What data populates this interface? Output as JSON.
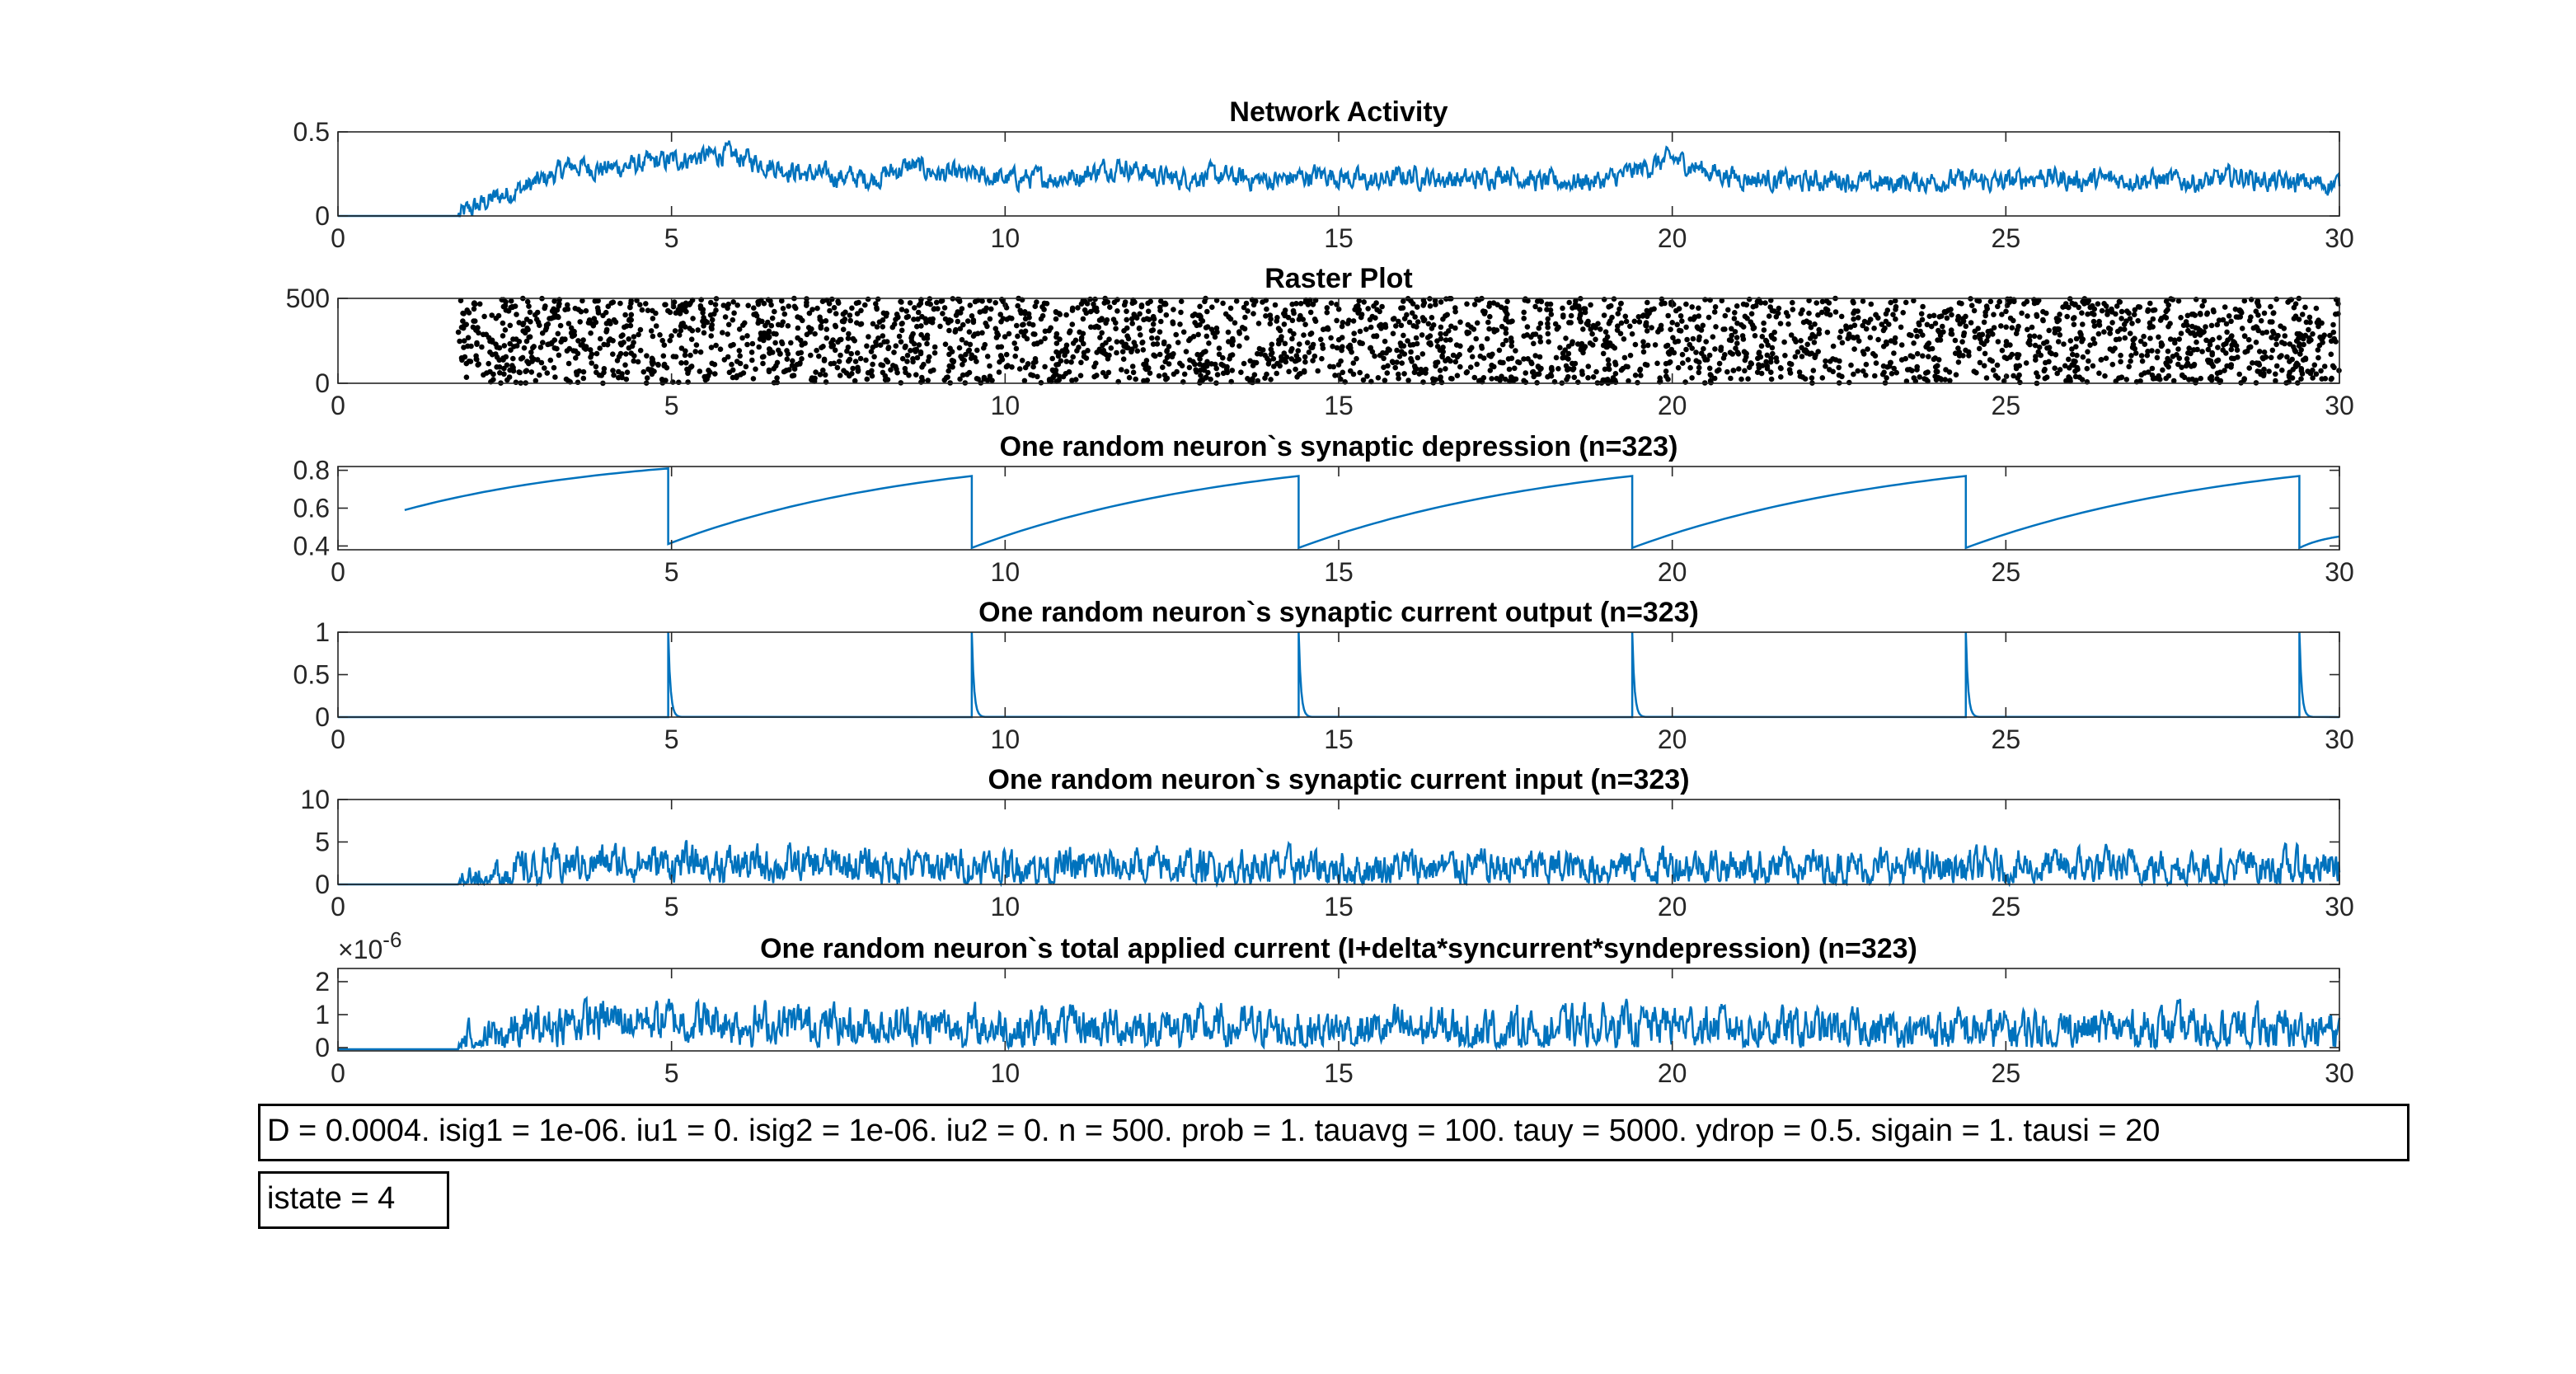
{
  "colors": {
    "line": "#0072BD",
    "raster": "#000000",
    "axis": "#262626"
  },
  "chart_data": [
    {
      "type": "line",
      "title": "Network Activity",
      "x": [
        0,
        1,
        1.8,
        2.3,
        3,
        3.5,
        4,
        5,
        5.8,
        6.5,
        7,
        8,
        8.6,
        9,
        10,
        11,
        11.7,
        12.5,
        13,
        14,
        14.8,
        15.5,
        16,
        17,
        17.5,
        18,
        19,
        20,
        20.5,
        21,
        22,
        22.5,
        23,
        24,
        25,
        25.5,
        26,
        27,
        28,
        28.5,
        29,
        30
      ],
      "values": [
        0,
        0,
        0,
        0.1,
        0.2,
        0.3,
        0.28,
        0.33,
        0.37,
        0.3,
        0.25,
        0.22,
        0.3,
        0.25,
        0.22,
        0.23,
        0.3,
        0.22,
        0.24,
        0.21,
        0.25,
        0.2,
        0.24,
        0.21,
        0.26,
        0.2,
        0.21,
        0.34,
        0.27,
        0.23,
        0.2,
        0.22,
        0.19,
        0.21,
        0.2,
        0.24,
        0.21,
        0.22,
        0.2,
        0.24,
        0.2,
        0.19
      ],
      "noise": 0.05,
      "xlim": [
        0,
        30
      ],
      "ylim": [
        0,
        0.5
      ],
      "xticks": [
        "0",
        "5",
        "10",
        "15",
        "20",
        "25",
        "30"
      ],
      "yticks": [
        {
          "v": 0,
          "label": "0"
        },
        {
          "v": 0.5,
          "label": "0.5"
        }
      ]
    },
    {
      "type": "scatter",
      "title": "Raster Plot",
      "x_start": 1.8,
      "x_end": 30,
      "y_max": 500,
      "points_per_unit": 110,
      "xlim": [
        0,
        30
      ],
      "ylim": [
        0,
        500
      ],
      "xticks": [
        "0",
        "5",
        "10",
        "15",
        "20",
        "25",
        "30"
      ],
      "yticks": [
        {
          "v": 0,
          "label": "0"
        },
        {
          "v": 500,
          "label": "500"
        }
      ]
    },
    {
      "type": "line",
      "title": "One random neuron`s synaptic depression (n=323)",
      "x": [
        1,
        4.95,
        4.95,
        9.5,
        9.5,
        14.4,
        14.4,
        19.4,
        19.4,
        24.4,
        24.4,
        29.4,
        29.4,
        30
      ],
      "values": [
        0.59,
        0.81,
        0.41,
        0.77,
        0.39,
        0.77,
        0.39,
        0.77,
        0.39,
        0.77,
        0.39,
        0.77,
        0.39,
        0.45
      ],
      "curve": "saturating",
      "xlim": [
        0,
        30
      ],
      "ylim": [
        0.38,
        0.82
      ],
      "xticks": [
        "0",
        "5",
        "10",
        "15",
        "20",
        "25",
        "30"
      ],
      "yticks": [
        {
          "v": 0.4,
          "label": "0.4"
        },
        {
          "v": 0.6,
          "label": "0.6"
        },
        {
          "v": 0.8,
          "label": "0.8"
        }
      ]
    },
    {
      "type": "line",
      "title": "One random neuron`s synaptic current output (n=323)",
      "spike_x": [
        4.95,
        9.5,
        14.4,
        19.4,
        24.4,
        29.4
      ],
      "spike_height": 1,
      "xlim": [
        0,
        30
      ],
      "ylim": [
        0,
        1
      ],
      "xticks": [
        "0",
        "5",
        "10",
        "15",
        "20",
        "25",
        "30"
      ],
      "yticks": [
        {
          "v": 0,
          "label": "0"
        },
        {
          "v": 0.5,
          "label": "0.5"
        },
        {
          "v": 1,
          "label": "1"
        }
      ]
    },
    {
      "type": "line",
      "title": "One random neuron`s synaptic current input (n=323)",
      "x": [
        0,
        1,
        1.8,
        2.5,
        3.5,
        4.5,
        5.5,
        6.5,
        8,
        9.5,
        11,
        12,
        14,
        16,
        18,
        20,
        22,
        24,
        26,
        28,
        30
      ],
      "values": [
        0,
        0,
        0,
        1.4,
        2.4,
        2.6,
        2.4,
        2.2,
        2.2,
        2.0,
        2.0,
        2.1,
        1.9,
        2.0,
        1.9,
        2.4,
        2.0,
        1.9,
        2.0,
        2.0,
        1.9
      ],
      "noise": 1.7,
      "ymin_clip": 0,
      "xlim": [
        0,
        30
      ],
      "ylim": [
        0,
        10
      ],
      "xticks": [
        "0",
        "5",
        "10",
        "15",
        "20",
        "25",
        "30"
      ],
      "yticks": [
        {
          "v": 0,
          "label": "0"
        },
        {
          "v": 5,
          "label": "5"
        },
        {
          "v": 10,
          "label": "10"
        }
      ]
    },
    {
      "type": "line",
      "title": "One random neuron`s total applied current (I+delta*syncurrent*syndepression) (n=323)",
      "exponent_label": "×10",
      "exponent": "-6",
      "x": [
        0,
        1,
        1.8,
        2.5,
        3.5,
        4.5,
        5.5,
        6.5,
        8,
        9.5,
        11,
        12,
        14,
        16,
        18,
        20,
        22,
        24,
        26,
        28,
        30
      ],
      "values": [
        -0.05,
        -0.05,
        -0.05,
        0.4,
        0.8,
        0.85,
        0.8,
        0.7,
        0.7,
        0.6,
        0.6,
        0.62,
        0.55,
        0.55,
        0.55,
        0.7,
        0.55,
        0.5,
        0.55,
        0.55,
        0.5
      ],
      "noise": 0.5,
      "ymin_clip": 0,
      "xlim": [
        0,
        30
      ],
      "ylim": [
        -0.1,
        2.4
      ],
      "xticks": [
        "0",
        "5",
        "10",
        "15",
        "20",
        "25",
        "30"
      ],
      "yticks": [
        {
          "v": 0,
          "label": "0"
        },
        {
          "v": 1,
          "label": "1"
        },
        {
          "v": 2,
          "label": "2"
        }
      ]
    }
  ],
  "params_text": "D = 0.0004. isig1 = 1e-06. iu1 = 0. isig2 = 1e-06. iu2 = 0. n = 500. prob = 1. tauavg = 100. tauy = 5000. ydrop = 0.5. sigain = 1. tausi = 20",
  "state_text": "istate = 4"
}
